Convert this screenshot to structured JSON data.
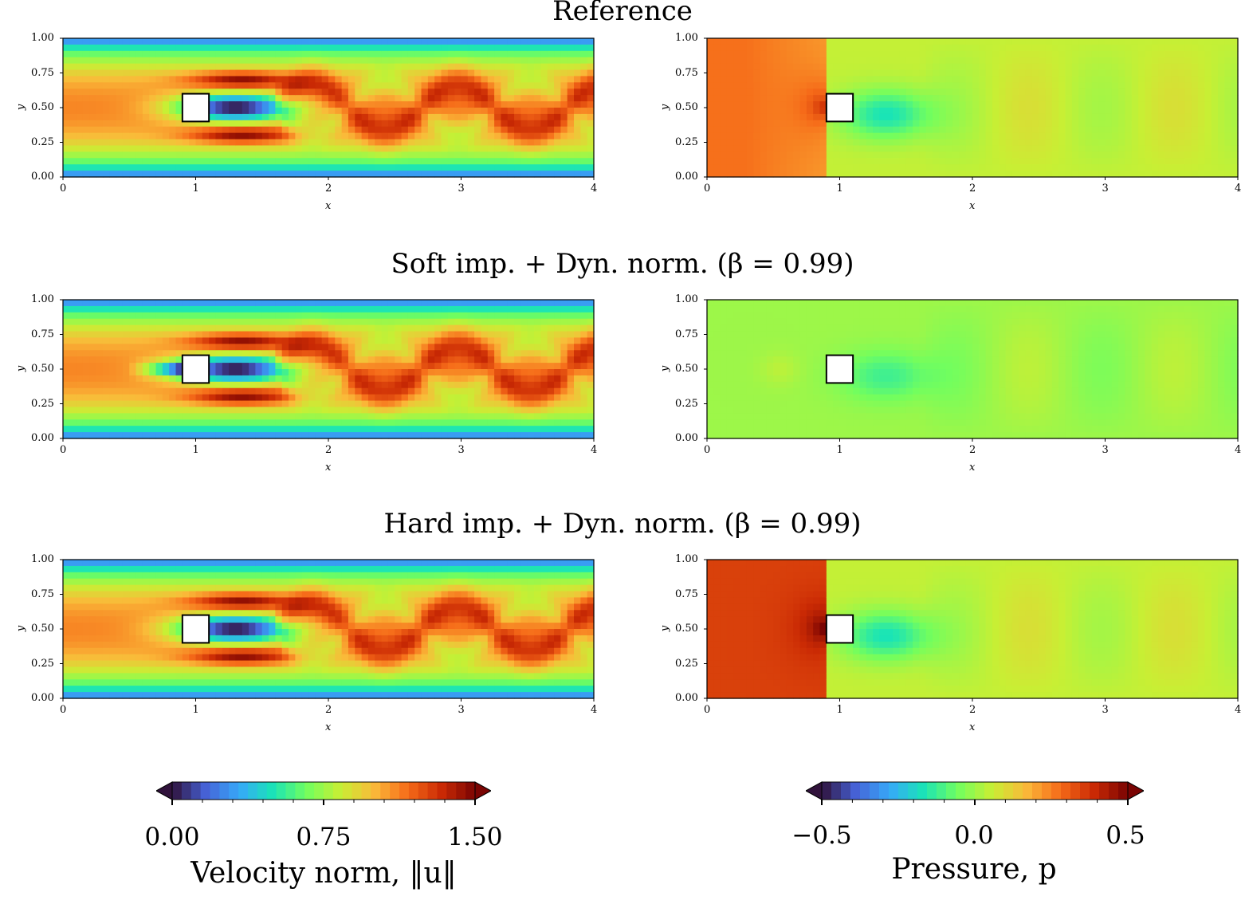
{
  "chart_data": {
    "type": "heatmap",
    "layout": "3 rows x 2 columns of contour plots",
    "rows": [
      {
        "title": "Reference",
        "panels": [
          {
            "field": "velocity",
            "xlabel": "x",
            "ylabel": "y",
            "xlim": [
              0,
              4
            ],
            "ylim": [
              0,
              1
            ],
            "xticks": [
              "0",
              "1",
              "2",
              "3",
              "4"
            ],
            "yticks": [
              "0.00",
              "0.25",
              "0.50",
              "0.75",
              "1.00"
            ]
          },
          {
            "field": "pressure",
            "xlabel": "x",
            "ylabel": "y",
            "xlim": [
              0,
              4
            ],
            "ylim": [
              0,
              1
            ],
            "xticks": [
              "0",
              "1",
              "2",
              "3",
              "4"
            ],
            "yticks": [
              "0.00",
              "0.25",
              "0.50",
              "0.75",
              "1.00"
            ]
          }
        ]
      },
      {
        "title": "Soft imp. + Dyn. norm. (β = 0.99)",
        "panels": [
          {
            "field": "velocity",
            "xlabel": "x",
            "ylabel": "y",
            "xlim": [
              0,
              4
            ],
            "ylim": [
              0,
              1
            ],
            "xticks": [
              "0",
              "1",
              "2",
              "3",
              "4"
            ],
            "yticks": [
              "0.00",
              "0.25",
              "0.50",
              "0.75",
              "1.00"
            ]
          },
          {
            "field": "pressure",
            "xlabel": "x",
            "ylabel": "y",
            "xlim": [
              0,
              4
            ],
            "ylim": [
              0,
              1
            ],
            "xticks": [
              "0",
              "1",
              "2",
              "3",
              "4"
            ],
            "yticks": [
              "0.00",
              "0.25",
              "0.50",
              "0.75",
              "1.00"
            ]
          }
        ]
      },
      {
        "title": "Hard imp. + Dyn. norm. (β = 0.99)",
        "panels": [
          {
            "field": "velocity",
            "xlabel": "x",
            "ylabel": "y",
            "xlim": [
              0,
              4
            ],
            "ylim": [
              0,
              1
            ],
            "xticks": [
              "0",
              "1",
              "2",
              "3",
              "4"
            ],
            "yticks": [
              "0.00",
              "0.25",
              "0.50",
              "0.75",
              "1.00"
            ]
          },
          {
            "field": "pressure",
            "xlabel": "x",
            "ylabel": "y",
            "xlim": [
              0,
              4
            ],
            "ylim": [
              0,
              1
            ],
            "xticks": [
              "0",
              "1",
              "2",
              "3",
              "4"
            ],
            "yticks": [
              "0.00",
              "0.25",
              "0.50",
              "0.75",
              "1.00"
            ]
          }
        ]
      }
    ],
    "obstacle": {
      "x_range": [
        0.9,
        1.1
      ],
      "y_range": [
        0.4,
        0.6
      ],
      "fill": "#ffffff"
    },
    "colorbars": [
      {
        "field": "velocity",
        "label": "Velocity norm, ‖u‖",
        "range": [
          0.0,
          1.5
        ],
        "ticks": [
          "0.00",
          "0.75",
          "1.50"
        ],
        "extend": "both"
      },
      {
        "field": "pressure",
        "label": "Pressure, p",
        "range": [
          -0.5,
          0.5
        ],
        "ticks": [
          "−0.5",
          "0.0",
          "0.5"
        ],
        "extend": "both"
      }
    ],
    "colormap": "turbo",
    "colormap_stops": [
      "#30123b",
      "#4662d7",
      "#36a9f9",
      "#1ae4b6",
      "#72fe5e",
      "#c8ef34",
      "#faba39",
      "#f66b19",
      "#ca2a04",
      "#7a0403"
    ]
  }
}
